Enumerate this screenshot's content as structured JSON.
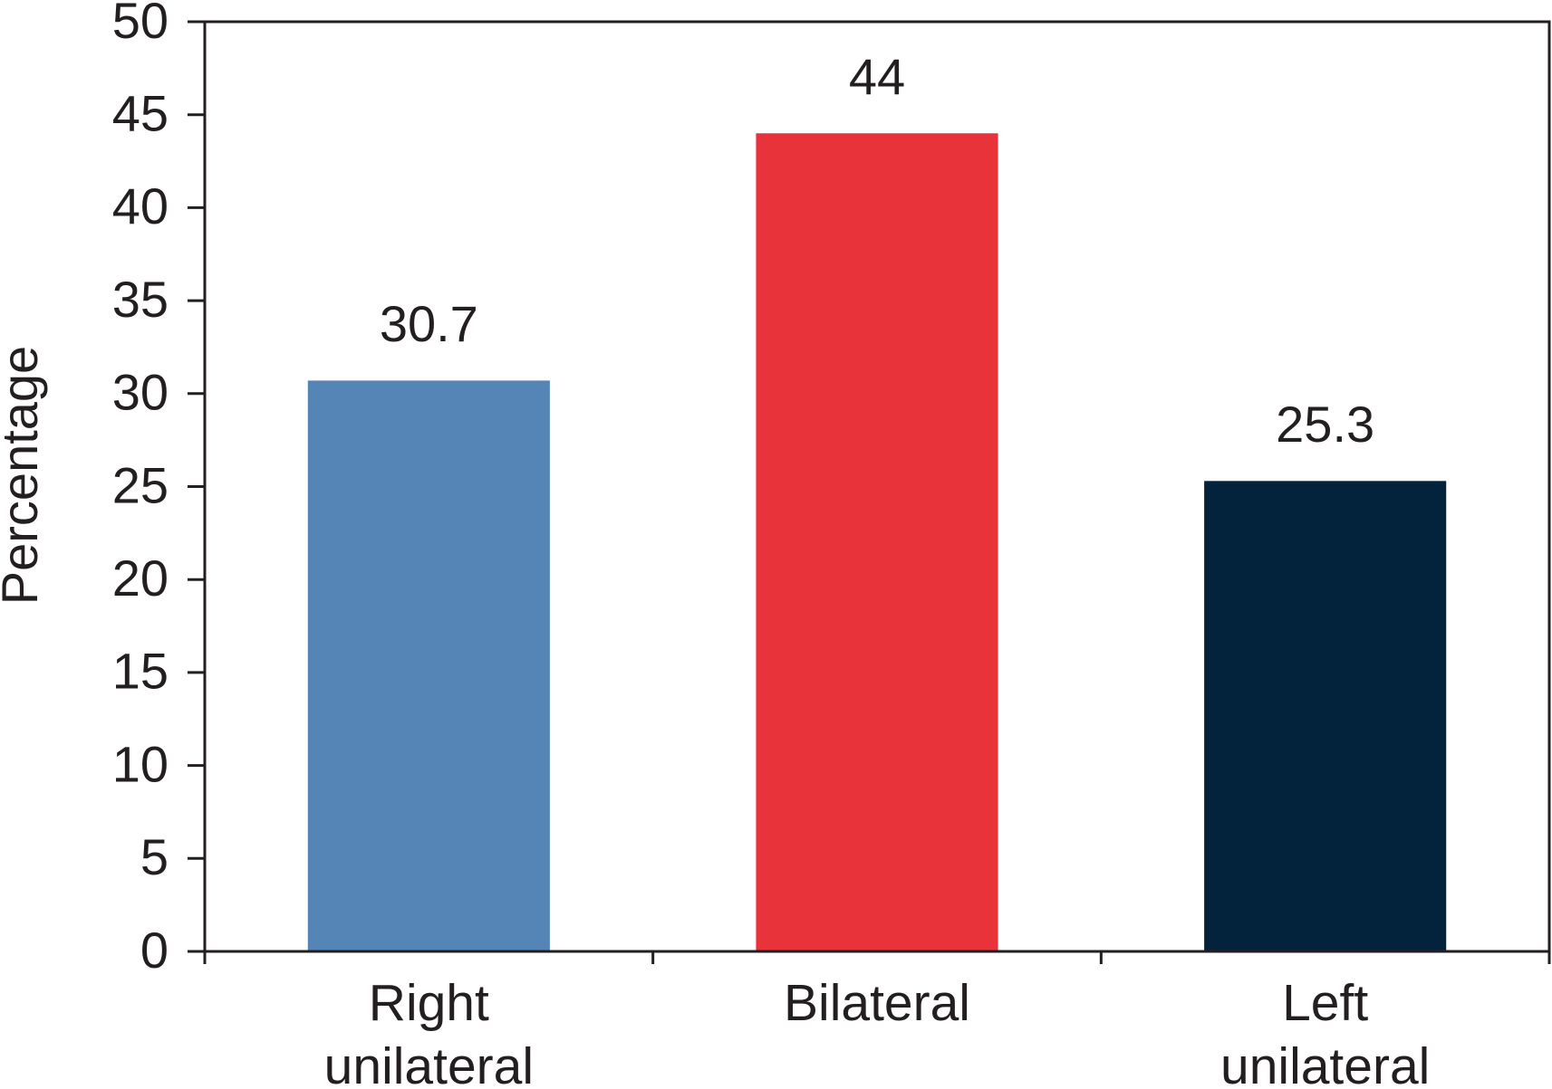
{
  "chart_data": {
    "type": "bar",
    "y_label": "Percentage",
    "categories": [
      "Right unilateral",
      "Bilateral",
      "Left unilateral"
    ],
    "values": [
      30.7,
      44,
      25.3
    ],
    "colors": [
      "#5584b6",
      "#e8333a",
      "#03223c"
    ],
    "ylim": [
      0,
      50
    ],
    "yticks": [
      0,
      5,
      10,
      15,
      20,
      25,
      30,
      35,
      40,
      45,
      50
    ],
    "grid": false
  }
}
